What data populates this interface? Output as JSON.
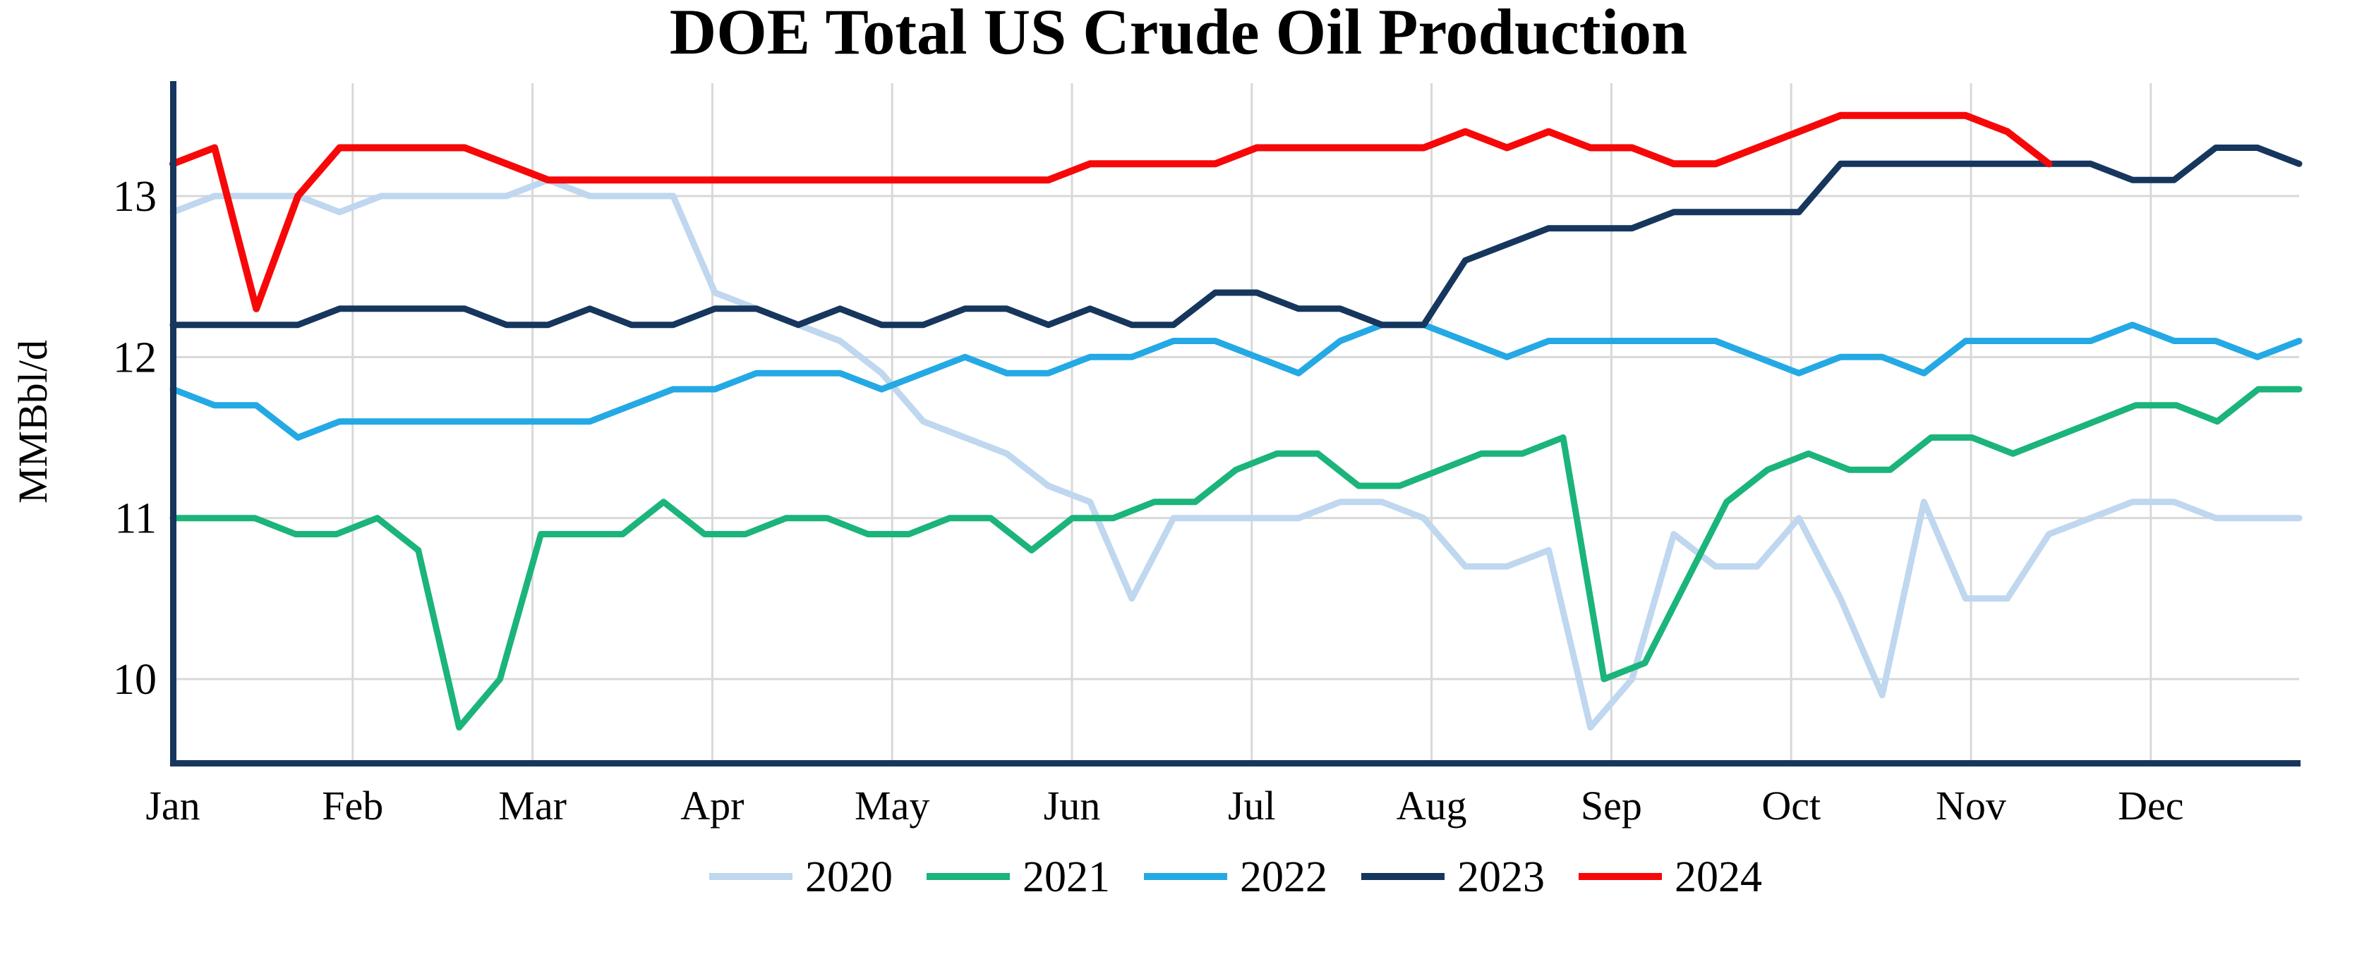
{
  "title": "DOE Total US Crude Oil Production",
  "chart_data": {
    "type": "line",
    "title": "DOE Total US Crude Oil Production",
    "xlabel": "",
    "ylabel": "MMBbl/d",
    "x_axis": {
      "unit": "week-of-year",
      "tick_labels": [
        "Jan",
        "Feb",
        "Mar",
        "Apr",
        "May",
        "Jun",
        "Jul",
        "Aug",
        "Sep",
        "Oct",
        "Nov",
        "Dec"
      ]
    },
    "y_axis": {
      "ticks": [
        10,
        11,
        12,
        13
      ],
      "tick_labels": [
        "10",
        "11",
        "12",
        "13"
      ],
      "range": [
        9.47,
        13.72
      ]
    },
    "grid": true,
    "legend_position": "bottom-center",
    "series": [
      {
        "name": "2020",
        "color": "#BFD7EF",
        "spans_full_year": true,
        "values": [
          12.9,
          13.0,
          13.0,
          13.0,
          12.9,
          13.0,
          13.0,
          13.0,
          13.0,
          13.1,
          13.0,
          13.0,
          13.0,
          12.4,
          12.3,
          12.2,
          12.1,
          11.9,
          11.6,
          11.5,
          11.4,
          11.2,
          11.1,
          10.5,
          11.0,
          11.0,
          11.0,
          11.0,
          11.1,
          11.1,
          11.0,
          10.7,
          10.7,
          10.8,
          9.7,
          10.0,
          10.9,
          10.7,
          10.7,
          11.0,
          10.5,
          9.9,
          11.1,
          10.5,
          10.5,
          10.9,
          11.0,
          11.1,
          11.1,
          11.0,
          11.0,
          11.0
        ]
      },
      {
        "name": "2021",
        "color": "#1BB47B",
        "spans_full_year": true,
        "values": [
          11.0,
          11.0,
          11.0,
          10.9,
          10.9,
          11.0,
          10.8,
          9.7,
          10.0,
          10.9,
          10.9,
          10.9,
          11.1,
          10.9,
          10.9,
          11.0,
          11.0,
          10.9,
          10.9,
          11.0,
          11.0,
          10.8,
          11.0,
          11.0,
          11.1,
          11.1,
          11.3,
          11.4,
          11.4,
          11.2,
          11.2,
          11.3,
          11.4,
          11.4,
          11.5,
          10.0,
          10.1,
          10.6,
          11.1,
          11.3,
          11.4,
          11.3,
          11.3,
          11.5,
          11.5,
          11.4,
          11.5,
          11.6,
          11.7,
          11.7,
          11.6,
          11.8,
          11.8
        ]
      },
      {
        "name": "2022",
        "color": "#24A9E4",
        "spans_full_year": true,
        "values": [
          11.8,
          11.7,
          11.7,
          11.5,
          11.6,
          11.6,
          11.6,
          11.6,
          11.6,
          11.6,
          11.6,
          11.7,
          11.8,
          11.8,
          11.9,
          11.9,
          11.9,
          11.8,
          11.9,
          12.0,
          11.9,
          11.9,
          12.0,
          12.0,
          12.1,
          12.1,
          12.0,
          11.9,
          12.1,
          12.2,
          12.2,
          12.1,
          12.0,
          12.1,
          12.1,
          12.1,
          12.1,
          12.1,
          12.0,
          11.9,
          12.0,
          12.0,
          11.9,
          12.1,
          12.1,
          12.1,
          12.1,
          12.2,
          12.1,
          12.1,
          12.0,
          12.1
        ]
      },
      {
        "name": "2023",
        "color": "#16365D",
        "spans_full_year": true,
        "values": [
          12.2,
          12.2,
          12.2,
          12.2,
          12.3,
          12.3,
          12.3,
          12.3,
          12.2,
          12.2,
          12.3,
          12.2,
          12.2,
          12.3,
          12.3,
          12.2,
          12.3,
          12.2,
          12.2,
          12.3,
          12.3,
          12.2,
          12.3,
          12.2,
          12.2,
          12.4,
          12.4,
          12.3,
          12.3,
          12.2,
          12.2,
          12.6,
          12.7,
          12.8,
          12.8,
          12.8,
          12.9,
          12.9,
          12.9,
          12.9,
          13.2,
          13.2,
          13.2,
          13.2,
          13.2,
          13.2,
          13.2,
          13.1,
          13.1,
          13.3,
          13.3,
          13.2
        ]
      },
      {
        "name": "2024",
        "color": "#F70808",
        "spans_full_year": false,
        "values": [
          13.2,
          13.3,
          12.3,
          13.0,
          13.3,
          13.3,
          13.3,
          13.3,
          13.2,
          13.1,
          13.1,
          13.1,
          13.1,
          13.1,
          13.1,
          13.1,
          13.1,
          13.1,
          13.1,
          13.1,
          13.1,
          13.1,
          13.2,
          13.2,
          13.2,
          13.2,
          13.3,
          13.3,
          13.3,
          13.3,
          13.3,
          13.4,
          13.3,
          13.4,
          13.3,
          13.3,
          13.2,
          13.2,
          13.3,
          13.4,
          13.5,
          13.5,
          13.5,
          13.5,
          13.4,
          13.2
        ]
      }
    ]
  },
  "styles": {
    "axis_color": "#16365D",
    "grid_color": "#D8D8D8",
    "background": "#FFFFFF",
    "text_color": "#000000"
  }
}
